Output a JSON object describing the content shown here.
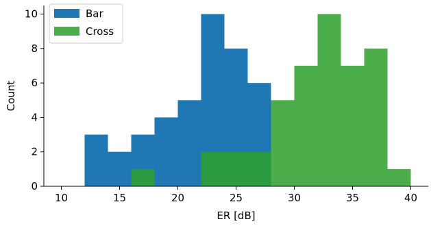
{
  "chart_data": {
    "type": "histogram",
    "xlabel": "ER [dB]",
    "ylabel": "Count",
    "xlim": [
      8.5,
      41.5
    ],
    "ylim": [
      0,
      10.5
    ],
    "xticks": [
      10,
      15,
      20,
      25,
      30,
      35,
      40
    ],
    "yticks": [
      0,
      2,
      4,
      6,
      8,
      10
    ],
    "grid": false,
    "legend_position": "top-left",
    "bin_edges": [
      10,
      12,
      14,
      16,
      18,
      20,
      22,
      24,
      26,
      28,
      30,
      32,
      34,
      36,
      38,
      40
    ],
    "series": [
      {
        "name": "Bar",
        "color": "#1f77b4",
        "counts": [
          0,
          3,
          2,
          3,
          4,
          5,
          10,
          8,
          6,
          0,
          0,
          0,
          0,
          0,
          0
        ]
      },
      {
        "name": "Cross",
        "color": "#2ca02c",
        "opacity": 0.85,
        "counts": [
          0,
          0,
          0,
          1,
          0,
          0,
          2,
          2,
          2,
          5,
          7,
          10,
          7,
          8,
          1
        ]
      }
    ]
  }
}
